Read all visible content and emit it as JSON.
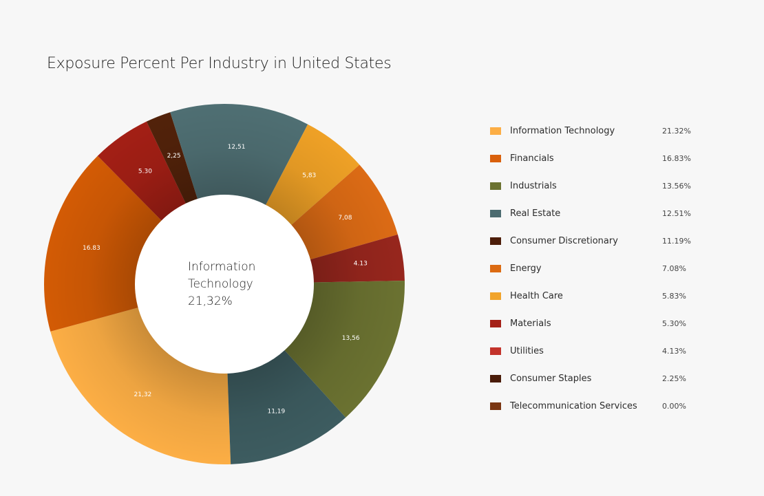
{
  "chart_data": {
    "type": "pie",
    "title": "Exposure Percent Per Industry in United States",
    "center_label": {
      "line1": "Information",
      "line2": "Technology",
      "line3": "21,32%"
    },
    "slices": [
      {
        "label": "21,32",
        "value": 21.32,
        "color": "#fcae45"
      },
      {
        "label": "16.83",
        "value": 16.83,
        "color": "#d35b05"
      },
      {
        "label": "5.30",
        "value": 5.3,
        "color": "#a31f15"
      },
      {
        "label": "2,25",
        "value": 2.25,
        "color": "#52220a"
      },
      {
        "label": "12,51",
        "value": 12.51,
        "color": "#4f6f73"
      },
      {
        "label": "5,83",
        "value": 5.83,
        "color": "#efa126"
      },
      {
        "label": "7,08",
        "value": 7.08,
        "color": "#dc6b15"
      },
      {
        "label": "4.13",
        "value": 4.13,
        "color": "#97261d"
      },
      {
        "label": "13,56",
        "value": 13.56,
        "color": "#6b7231"
      },
      {
        "label": "11,19",
        "value": 11.19,
        "color": "#3d5c60"
      }
    ],
    "legend": [
      {
        "name": "Information Technology",
        "value": "21.32%",
        "color": "#fcae45"
      },
      {
        "name": "Financials",
        "value": "16.83%",
        "color": "#d9600c"
      },
      {
        "name": "Industrials",
        "value": "13.56%",
        "color": "#6b7231"
      },
      {
        "name": "Real Estate",
        "value": "12.51%",
        "color": "#4c6b70"
      },
      {
        "name": "Consumer Discretionary",
        "value": "11.19%",
        "color": "#4d1e0a"
      },
      {
        "name": "Energy",
        "value": "7.08%",
        "color": "#dc6b12"
      },
      {
        "name": "Health Care",
        "value": "5.83%",
        "color": "#f1a42b"
      },
      {
        "name": "Materials",
        "value": "5.30%",
        "color": "#a52118"
      },
      {
        "name": "Utilities",
        "value": "4.13%",
        "color": "#c3332b"
      },
      {
        "name": "Consumer Staples",
        "value": "2.25%",
        "color": "#4a1c09"
      },
      {
        "name": "Telecommunication Services",
        "value": "0.00%",
        "color": "#7a3612"
      }
    ]
  }
}
